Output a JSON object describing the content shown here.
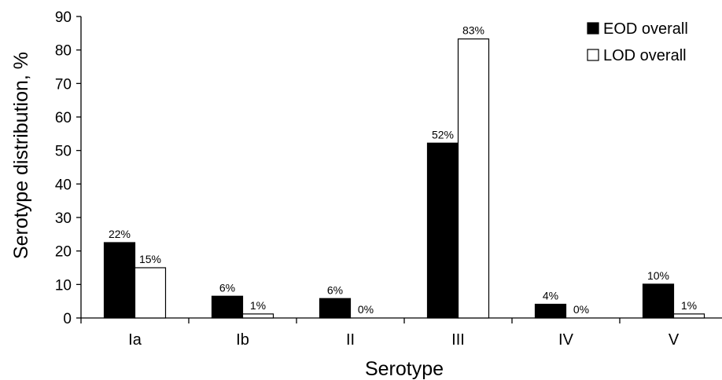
{
  "chart_data": {
    "type": "bar",
    "xlabel": "Serotype",
    "ylabel": "Serotype distribution, %",
    "ylim": [
      0,
      90
    ],
    "yticks": [
      0,
      10,
      20,
      30,
      40,
      50,
      60,
      70,
      80,
      90
    ],
    "grid": false,
    "legend_position": "top-right",
    "categories": [
      "Ia",
      "Ib",
      "II",
      "III",
      "IV",
      "V"
    ],
    "series": [
      {
        "name": "EOD overall",
        "color": "#000000",
        "values": [
          22.5,
          6.5,
          5.8,
          52.2,
          4.1,
          10.1
        ],
        "labels": [
          "22%",
          "6%",
          "6%",
          "52%",
          "4%",
          "10%"
        ]
      },
      {
        "name": "LOD overall",
        "color": "#ffffff",
        "values": [
          15.0,
          1.2,
          0.0,
          83.3,
          0.0,
          1.2
        ],
        "labels": [
          "15%",
          "1%",
          "0%",
          "83%",
          "0%",
          "1%"
        ]
      }
    ]
  }
}
